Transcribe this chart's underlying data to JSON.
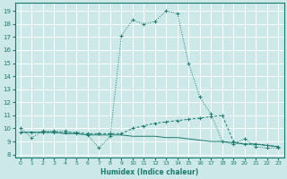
{
  "xlabel": "Humidex (Indice chaleur)",
  "background_color": "#cce8e8",
  "grid_color": "#ffffff",
  "line_color": "#1a7a6e",
  "xlim": [
    -0.5,
    23.5
  ],
  "ylim": [
    7.8,
    19.6
  ],
  "yticks": [
    8,
    9,
    10,
    11,
    12,
    13,
    14,
    15,
    16,
    17,
    18,
    19
  ],
  "xticks": [
    0,
    1,
    2,
    3,
    4,
    5,
    6,
    7,
    8,
    9,
    10,
    11,
    12,
    13,
    14,
    15,
    16,
    17,
    18,
    19,
    20,
    21,
    22,
    23
  ],
  "series1_x": [
    0,
    1,
    2,
    3,
    4,
    5,
    6,
    7,
    8,
    9,
    10,
    11,
    12,
    13,
    14,
    15,
    16,
    17,
    18,
    19,
    20,
    21,
    22,
    23
  ],
  "series1_y": [
    10.0,
    9.3,
    9.8,
    9.8,
    9.8,
    9.6,
    9.5,
    8.5,
    9.4,
    17.1,
    18.3,
    18.0,
    18.2,
    19.0,
    18.8,
    15.0,
    12.4,
    11.1,
    9.0,
    8.8,
    9.2,
    8.6,
    8.5,
    8.5
  ],
  "series2_x": [
    0,
    1,
    2,
    3,
    4,
    5,
    6,
    7,
    8,
    9,
    10,
    11,
    12,
    13,
    14,
    15,
    16,
    17,
    18,
    19,
    20,
    21,
    22,
    23
  ],
  "series2_y": [
    9.7,
    9.7,
    9.7,
    9.7,
    9.7,
    9.7,
    9.6,
    9.6,
    9.6,
    9.6,
    10.0,
    10.2,
    10.4,
    10.5,
    10.6,
    10.7,
    10.8,
    10.9,
    11.0,
    9.0,
    8.8,
    8.8,
    8.7,
    8.6
  ],
  "series3_x": [
    0,
    1,
    2,
    3,
    4,
    5,
    6,
    7,
    8,
    9,
    10,
    11,
    12,
    13,
    14,
    15,
    16,
    17,
    18,
    19,
    20,
    21,
    22,
    23
  ],
  "series3_y": [
    9.7,
    9.7,
    9.7,
    9.7,
    9.6,
    9.6,
    9.5,
    9.5,
    9.5,
    9.5,
    9.4,
    9.4,
    9.4,
    9.3,
    9.3,
    9.2,
    9.1,
    9.0,
    9.0,
    8.9,
    8.8,
    8.8,
    8.7,
    8.6
  ]
}
